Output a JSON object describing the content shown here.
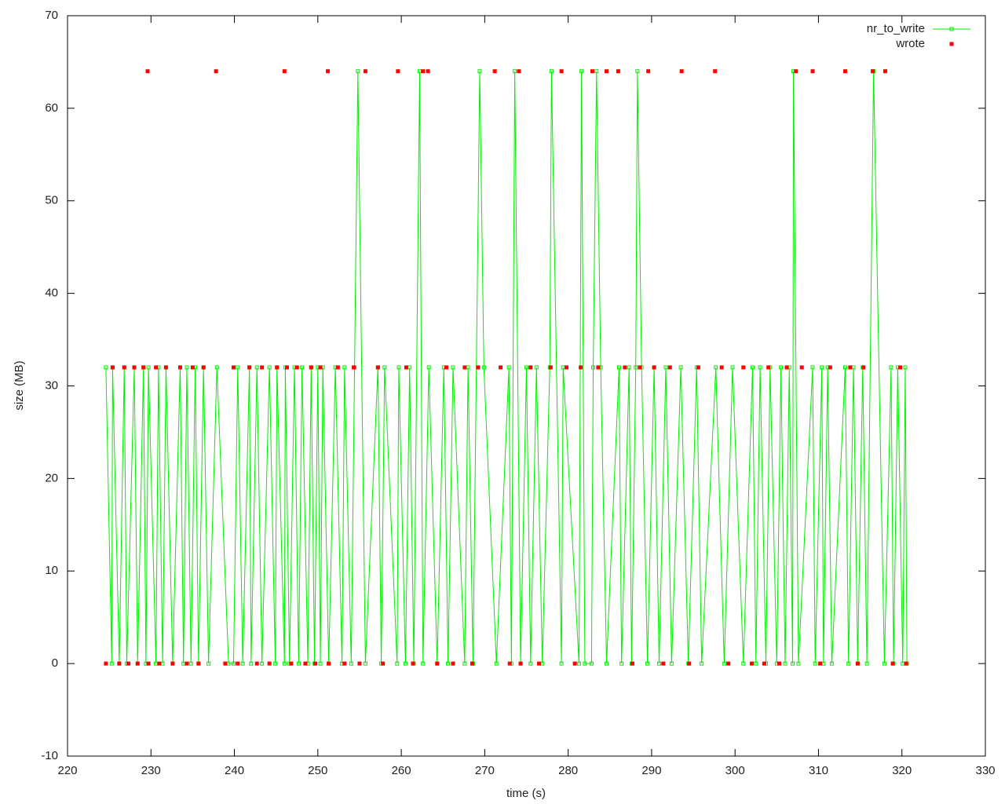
{
  "chart_data": {
    "type": "line",
    "xlabel": "time (s)",
    "ylabel": "size (MB)",
    "xlim": [
      220,
      330
    ],
    "xticks": [
      220,
      230,
      240,
      250,
      260,
      270,
      280,
      290,
      300,
      310,
      320,
      330
    ],
    "ylim": [
      -10,
      70
    ],
    "yticks": [
      -10,
      0,
      10,
      20,
      30,
      40,
      50,
      60,
      70
    ],
    "legend": "top-right",
    "series": [
      {
        "name": "nr_to_write",
        "color": "#00ee00",
        "style": "linespoints",
        "x": [
          224.6,
          225.3,
          225.4,
          226.2,
          226.8,
          227.1,
          228.0,
          228.4,
          229.1,
          229.4,
          229.7,
          230.6,
          230.9,
          231.4,
          231.8,
          232.6,
          233.5,
          233.9,
          234.3,
          234.8,
          235.3,
          235.7,
          236.3,
          236.9,
          237.9,
          239.3,
          239.9,
          240.4,
          241.0,
          241.8,
          242.0,
          242.7,
          243.3,
          244.2,
          244.9,
          245.1,
          246.0,
          246.1,
          246.6,
          247.2,
          247.7,
          248.1,
          248.8,
          249.2,
          249.6,
          250.0,
          250.3,
          250.6,
          251.3,
          252.1,
          252.9,
          253.2,
          254.0,
          254.4,
          254.8,
          255.7,
          257.2,
          257.6,
          258.0,
          259.5,
          259.7,
          260.5,
          261.0,
          261.5,
          262.2,
          262.6,
          263.3,
          264.3,
          265.1,
          265.6,
          266.2,
          267.6,
          268.0,
          268.6,
          269.4,
          269.9,
          271.4,
          272.9,
          273.2,
          273.6,
          274.3,
          275.0,
          275.5,
          276.2,
          276.9,
          277.8,
          278.0,
          279.2,
          279.4,
          281.3,
          281.6,
          282.0,
          282.8,
          283.0,
          283.4,
          283.9,
          284.6,
          286.1,
          286.4,
          287.3,
          287.6,
          288.1,
          288.3,
          288.8,
          289.5,
          290.3,
          290.9,
          291.7,
          292.4,
          293.5,
          294.4,
          295.4,
          296.0,
          297.7,
          298.7,
          299.7,
          301.0,
          302.1,
          302.5,
          303.0,
          303.7,
          304.2,
          305.0,
          305.5,
          306.0,
          306.5,
          306.9,
          307.0,
          307.6,
          309.3,
          309.6,
          310.4,
          310.6,
          311.1,
          311.6,
          313.2,
          313.6,
          314.2,
          314.7,
          315.3,
          315.8,
          316.6,
          317.9,
          318.7,
          319.0,
          319.5,
          320.1,
          320.4,
          320.6
        ],
        "values": [
          32,
          0,
          32,
          0,
          32,
          0,
          32,
          0,
          32,
          0,
          32,
          0,
          32,
          0,
          32,
          0,
          32,
          0,
          32,
          0,
          32,
          0,
          32,
          0,
          32,
          0,
          0,
          32,
          0,
          32,
          0,
          32,
          0,
          32,
          0,
          32,
          0,
          32,
          0,
          32,
          0,
          32,
          0,
          32,
          0,
          32,
          0,
          32,
          0,
          32,
          0,
          32,
          0,
          32,
          64,
          0,
          32,
          0,
          32,
          0,
          32,
          0,
          32,
          0,
          64,
          0,
          32,
          0,
          32,
          0,
          32,
          0,
          32,
          0,
          64,
          32,
          0,
          32,
          0,
          64,
          0,
          32,
          0,
          32,
          0,
          32,
          64,
          0,
          32,
          0,
          64,
          0,
          0,
          32,
          64,
          32,
          0,
          32,
          0,
          32,
          0,
          32,
          64,
          32,
          0,
          32,
          0,
          32,
          0,
          32,
          0,
          32,
          0,
          32,
          0,
          32,
          0,
          32,
          0,
          32,
          0,
          32,
          0,
          32,
          0,
          32,
          0,
          64,
          0,
          32,
          0,
          32,
          0,
          32,
          0,
          32,
          0,
          32,
          0,
          32,
          0,
          64,
          0,
          32,
          0,
          32,
          0,
          32,
          0
        ]
      },
      {
        "name": "wrote",
        "color": "#ff0000",
        "style": "points",
        "x": [
          224.6,
          225.4,
          226.2,
          226.8,
          227.3,
          228.0,
          228.4,
          229.1,
          229.6,
          229.7,
          230.6,
          231.0,
          231.8,
          232.6,
          233.5,
          234.3,
          235.0,
          235.7,
          236.3,
          237.8,
          238.9,
          239.9,
          240.4,
          241.8,
          242.7,
          243.3,
          244.2,
          245.1,
          246.0,
          246.3,
          246.8,
          247.5,
          248.5,
          249.2,
          249.7,
          250.3,
          251.2,
          251.3,
          252.4,
          253.2,
          254.3,
          255.0,
          255.7,
          257.2,
          257.8,
          259.6,
          260.6,
          261.4,
          262.6,
          263.2,
          264.3,
          265.4,
          266.2,
          267.6,
          268.5,
          269.2,
          271.2,
          271.9,
          273.0,
          274.1,
          274.3,
          275.5,
          276.5,
          277.9,
          279.2,
          279.8,
          280.8,
          281.5,
          282.9,
          283.6,
          284.6,
          286.0,
          286.8,
          287.7,
          288.6,
          289.6,
          290.3,
          291.4,
          292.2,
          293.6,
          294.5,
          295.6,
          297.6,
          298.4,
          299.2,
          301.0,
          302.0,
          303.5,
          304.0,
          305.3,
          306.2,
          307.3,
          308.0,
          309.3,
          310.2,
          311.4,
          313.2,
          313.8,
          314.7,
          315.4,
          316.5,
          318.0,
          318.9,
          319.8,
          320.5
        ],
        "values": [
          0,
          32,
          0,
          32,
          0,
          32,
          0,
          32,
          64,
          0,
          32,
          0,
          32,
          0,
          32,
          0,
          32,
          0,
          32,
          64,
          0,
          32,
          0,
          32,
          0,
          32,
          0,
          32,
          64,
          32,
          0,
          32,
          0,
          32,
          0,
          32,
          64,
          0,
          32,
          0,
          32,
          0,
          64,
          32,
          0,
          64,
          32,
          0,
          64,
          64,
          0,
          32,
          0,
          32,
          0,
          32,
          64,
          32,
          0,
          64,
          0,
          32,
          0,
          32,
          64,
          32,
          0,
          32,
          64,
          32,
          64,
          64,
          32,
          0,
          32,
          64,
          32,
          0,
          32,
          64,
          0,
          32,
          64,
          32,
          0,
          32,
          0,
          0,
          32,
          0,
          32,
          64,
          32,
          64,
          0,
          32,
          64,
          32,
          0,
          32,
          64,
          64,
          0,
          32,
          0
        ]
      }
    ]
  }
}
